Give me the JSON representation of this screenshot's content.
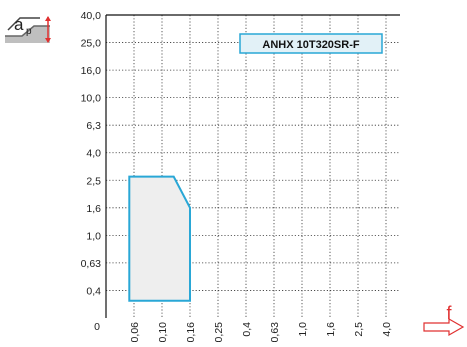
{
  "chart_data": {
    "type": "area",
    "y_axis": {
      "symbol": "a",
      "symbol_sub": "p",
      "tick_labels": [
        "0",
        "0,4",
        "0,63",
        "1,0",
        "1,6",
        "2,5",
        "4,0",
        "6,3",
        "10,0",
        "16,0",
        "25,0",
        "40,0"
      ]
    },
    "x_axis": {
      "symbol": "f",
      "tick_labels": [
        "0,06",
        "0,10",
        "0,16",
        "0,25",
        "0,4",
        "0,63",
        "1,0",
        "1,6",
        "2,5",
        "4,0"
      ]
    },
    "grid": true,
    "legend": {
      "label": "ANHX 10T320SR-F",
      "position": "top-right"
    },
    "series": [
      {
        "name": "ANHX 10T320SR-F",
        "region": [
          {
            "f": 0.05,
            "ap": 0.25
          },
          {
            "f": 0.05,
            "ap": 2.7
          },
          {
            "f": 0.125,
            "ap": 2.7
          },
          {
            "f": 0.16,
            "ap": 1.6
          },
          {
            "f": 0.16,
            "ap": 0.25
          }
        ]
      }
    ],
    "colors": {
      "region_outline": "#29a7d6",
      "region_fill": "#eeeeee",
      "legend_border": "#29a7d6",
      "legend_fill": "#e2f1f7",
      "indicator": "#e03030",
      "grid": "#333333"
    }
  }
}
